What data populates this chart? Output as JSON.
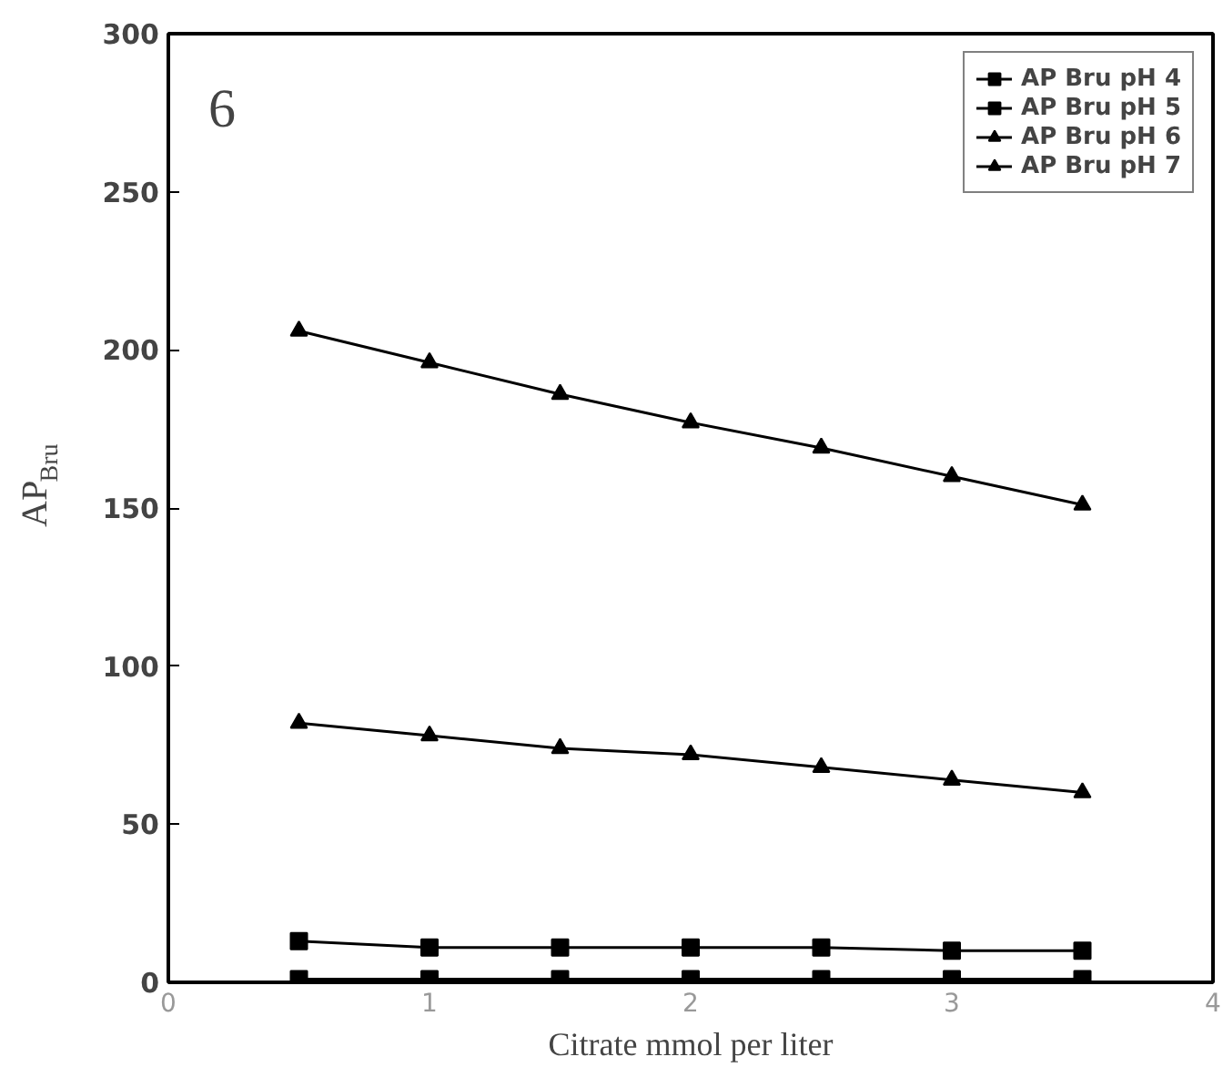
{
  "chart_data": {
    "type": "line",
    "xlabel": "Citrate mmol per liter",
    "ylabel": "AP$_{Bru}$",
    "annotations": [
      "6"
    ],
    "x": [
      0.5,
      1,
      1.5,
      2,
      2.5,
      3,
      3.5
    ],
    "xlim": [
      0,
      4
    ],
    "xticks": [
      0,
      1,
      2,
      3,
      4
    ],
    "ylim": [
      0,
      300
    ],
    "yticks": [
      0,
      50,
      100,
      150,
      200,
      250,
      300
    ],
    "grid": false,
    "legend": "top right",
    "line_style": "solid",
    "series": [
      {
        "name": "AP Bru pH 4",
        "color": "#000000",
        "marker": "square",
        "values": [
          1,
          1,
          1,
          1,
          1,
          1,
          1
        ]
      },
      {
        "name": "AP Bru pH 5",
        "color": "#000000",
        "marker": "square",
        "values": [
          13,
          11,
          11,
          11,
          11,
          10,
          10
        ]
      },
      {
        "name": "AP Bru pH 6",
        "color": "#000000",
        "marker": "triangle",
        "values": [
          82,
          78,
          74,
          72,
          68,
          64,
          60
        ]
      },
      {
        "name": "AP Bru pH 7",
        "color": "#000000",
        "marker": "triangle",
        "values": [
          206,
          196,
          186,
          177,
          169,
          160,
          151
        ]
      }
    ]
  }
}
